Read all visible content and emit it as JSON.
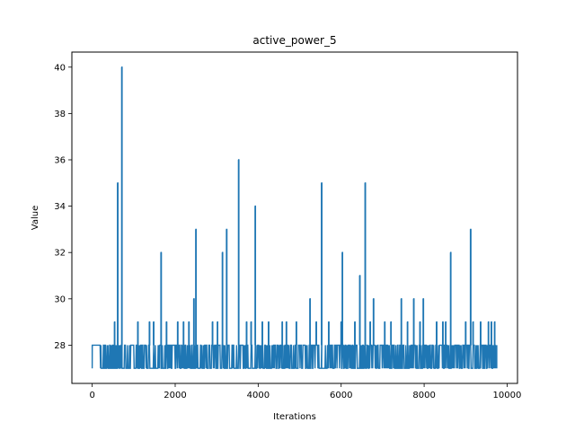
{
  "chart_data": {
    "type": "line",
    "title": "active_power_5",
    "xlabel": "Iterations",
    "ylabel": "Value",
    "xlim": [
      -490,
      10250
    ],
    "ylim": [
      26.35,
      40.65
    ],
    "xticks": [
      0,
      2000,
      4000,
      6000,
      8000,
      10000
    ],
    "yticks": [
      28,
      30,
      32,
      34,
      36,
      38,
      40
    ],
    "grid": false,
    "legend": "none",
    "colors": {
      "series": "#1f77b4"
    },
    "series": [
      {
        "name": "",
        "baseline": 28,
        "low_value": 27,
        "x_end": 9750,
        "spikes": [
          {
            "x": 540,
            "value": 29
          },
          {
            "x": 615,
            "value": 35
          },
          {
            "x": 715,
            "value": 40
          },
          {
            "x": 1100,
            "value": 29
          },
          {
            "x": 1380,
            "value": 29
          },
          {
            "x": 1480,
            "value": 29
          },
          {
            "x": 1660,
            "value": 32
          },
          {
            "x": 1790,
            "value": 29
          },
          {
            "x": 2060,
            "value": 29
          },
          {
            "x": 2200,
            "value": 29
          },
          {
            "x": 2330,
            "value": 29
          },
          {
            "x": 2450,
            "value": 30
          },
          {
            "x": 2500,
            "value": 33
          },
          {
            "x": 2900,
            "value": 29
          },
          {
            "x": 3020,
            "value": 29
          },
          {
            "x": 3140,
            "value": 32
          },
          {
            "x": 3240,
            "value": 33
          },
          {
            "x": 3530,
            "value": 36
          },
          {
            "x": 3720,
            "value": 29
          },
          {
            "x": 3830,
            "value": 29
          },
          {
            "x": 3930,
            "value": 34
          },
          {
            "x": 4100,
            "value": 29
          },
          {
            "x": 4250,
            "value": 29
          },
          {
            "x": 4580,
            "value": 29
          },
          {
            "x": 4680,
            "value": 29
          },
          {
            "x": 4920,
            "value": 29
          },
          {
            "x": 5250,
            "value": 30
          },
          {
            "x": 5400,
            "value": 29
          },
          {
            "x": 5530,
            "value": 35
          },
          {
            "x": 5700,
            "value": 29
          },
          {
            "x": 6000,
            "value": 29
          },
          {
            "x": 6030,
            "value": 32
          },
          {
            "x": 6330,
            "value": 29
          },
          {
            "x": 6450,
            "value": 31
          },
          {
            "x": 6580,
            "value": 35
          },
          {
            "x": 6700,
            "value": 29
          },
          {
            "x": 6780,
            "value": 30
          },
          {
            "x": 7050,
            "value": 29
          },
          {
            "x": 7200,
            "value": 29
          },
          {
            "x": 7450,
            "value": 30
          },
          {
            "x": 7600,
            "value": 29
          },
          {
            "x": 7750,
            "value": 30
          },
          {
            "x": 7900,
            "value": 29
          },
          {
            "x": 7980,
            "value": 30
          },
          {
            "x": 8300,
            "value": 29
          },
          {
            "x": 8450,
            "value": 29
          },
          {
            "x": 8520,
            "value": 29
          },
          {
            "x": 8640,
            "value": 32
          },
          {
            "x": 9000,
            "value": 29
          },
          {
            "x": 9120,
            "value": 33
          },
          {
            "x": 9180,
            "value": 29
          },
          {
            "x": 9360,
            "value": 29
          },
          {
            "x": 9550,
            "value": 29
          },
          {
            "x": 9620,
            "value": 29
          },
          {
            "x": 9700,
            "value": 29
          }
        ]
      }
    ]
  }
}
